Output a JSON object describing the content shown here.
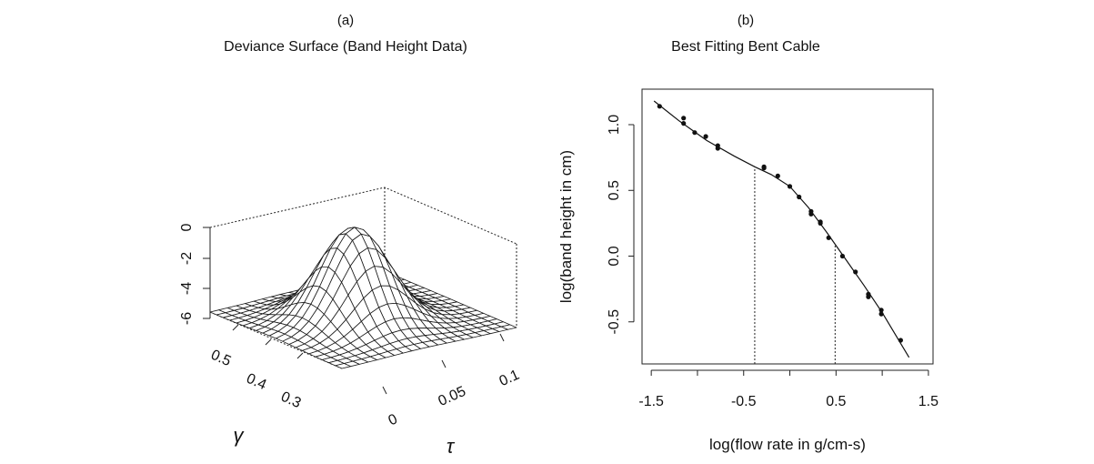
{
  "panels": [
    {
      "label": "(a)",
      "title": "Deviance Surface (Band Height Data)",
      "chart_data": {
        "type": "surface",
        "x_axis": {
          "label": "τ",
          "ticks": [
            "0",
            "0.05",
            "0.1"
          ]
        },
        "y_axis": {
          "label": "γ",
          "ticks": [
            "0.5",
            "0.4",
            "0.3"
          ]
        },
        "z_axis": {
          "label": "",
          "ticks": [
            "-6",
            "-4",
            "-2",
            "0"
          ]
        },
        "grid": "20x20 wireframe mesh, single peak near the center (max ~0)"
      }
    },
    {
      "label": "(b)",
      "title": "Best Fitting Bent Cable",
      "chart_data": {
        "type": "scatter",
        "xlabel": "log(flow rate in g/cm-s)",
        "ylabel": "log(band height in cm)",
        "xlim": [
          -1.6,
          1.55
        ],
        "ylim": [
          -0.82,
          1.27
        ],
        "x_ticks": [
          "-1.5",
          "-0.5",
          "0.5",
          "1.5"
        ],
        "y_ticks": [
          "-0.5",
          "0.0",
          "0.5",
          "1.0"
        ],
        "points": [
          [
            -1.41,
            1.14
          ],
          [
            -1.15,
            1.05
          ],
          [
            -1.15,
            1.01
          ],
          [
            -1.03,
            0.94
          ],
          [
            -0.91,
            0.91
          ],
          [
            -0.78,
            0.84
          ],
          [
            -0.78,
            0.82
          ],
          [
            -0.28,
            0.68
          ],
          [
            -0.28,
            0.67
          ],
          [
            -0.13,
            0.61
          ],
          [
            0.0,
            0.53
          ],
          [
            0.1,
            0.45
          ],
          [
            0.23,
            0.34
          ],
          [
            0.23,
            0.32
          ],
          [
            0.33,
            0.26
          ],
          [
            0.33,
            0.25
          ],
          [
            0.42,
            0.14
          ],
          [
            0.57,
            0.0
          ],
          [
            0.71,
            -0.12
          ],
          [
            0.85,
            -0.29
          ],
          [
            0.85,
            -0.31
          ],
          [
            0.99,
            -0.41
          ],
          [
            0.99,
            -0.44
          ],
          [
            1.2,
            -0.64
          ]
        ],
        "fit_line": [
          [
            -1.47,
            1.18
          ],
          [
            -1.2,
            1.03
          ],
          [
            -0.9,
            0.88
          ],
          [
            -0.6,
            0.76
          ],
          [
            -0.38,
            0.68
          ],
          [
            -0.2,
            0.62
          ],
          [
            0.0,
            0.53
          ],
          [
            0.2,
            0.37
          ],
          [
            0.4,
            0.18
          ],
          [
            0.6,
            -0.02
          ],
          [
            0.8,
            -0.22
          ],
          [
            1.0,
            -0.43
          ],
          [
            1.29,
            -0.77
          ]
        ],
        "breakpoints": [
          {
            "x": -0.38,
            "y": 0.68
          },
          {
            "x": 0.49,
            "y": 0.09
          }
        ]
      }
    }
  ]
}
